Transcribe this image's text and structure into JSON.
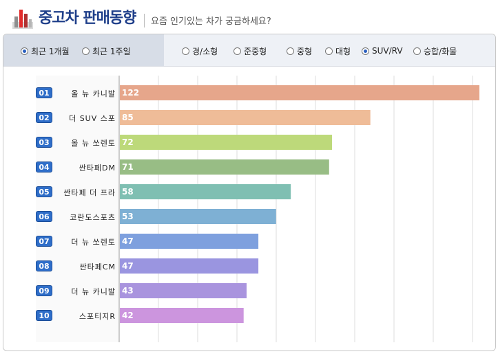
{
  "header": {
    "title": "중고차 판매동향",
    "subtitle": "요즘 인기있는 차가 궁금하세요?"
  },
  "filters": {
    "period": [
      {
        "label": "최근 1개월",
        "selected": true
      },
      {
        "label": "최근 1주일",
        "selected": false
      }
    ],
    "segment": [
      {
        "label": "경/소형",
        "selected": false
      },
      {
        "label": "준중형",
        "selected": false
      },
      {
        "label": "중형",
        "selected": false
      },
      {
        "label": "대형",
        "selected": false
      },
      {
        "label": "SUV/RV",
        "selected": true
      },
      {
        "label": "승합/화물",
        "selected": false
      }
    ]
  },
  "chart_data": {
    "type": "bar",
    "orientation": "horizontal",
    "title": "",
    "xlabel": "",
    "ylabel": "",
    "xlim": [
      0,
      122
    ],
    "grid": true,
    "categories": [
      "올 뉴 카니발",
      "더 SUV 스포",
      "올 뉴 쏘렌토",
      "싼타페DM",
      "싼타페 더 프라",
      "코란도스포츠",
      "더 뉴 쏘렌토",
      "싼타페CM",
      "더 뉴 카니발",
      "스포티지R"
    ],
    "ranks": [
      "01",
      "02",
      "03",
      "04",
      "05",
      "06",
      "07",
      "08",
      "09",
      "10"
    ],
    "values": [
      122,
      85,
      72,
      71,
      58,
      53,
      47,
      47,
      43,
      42
    ],
    "colors": [
      "#e6a68b",
      "#efbc98",
      "#bdd97a",
      "#98bd85",
      "#7fbfb2",
      "#7eb0d4",
      "#7ea0de",
      "#9a95e0",
      "#a994de",
      "#cc95de"
    ]
  }
}
